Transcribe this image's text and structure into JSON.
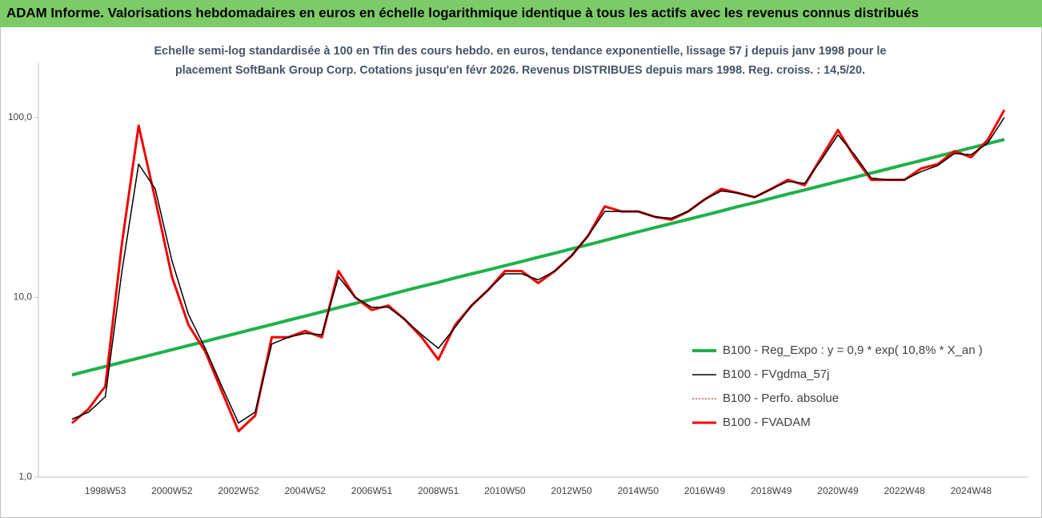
{
  "chart_data": {
    "type": "line",
    "title": "ADAM Informe. Valorisations hebdomadaires en euros en échelle logarithmique identique à tous les actifs avec les revenus connus distribués",
    "subtitle": [
      "Echelle semi-log standardisée à 100 en Tfin des cours hebdo. en euros, tendance exponentielle, lissage 57 j depuis janv 1998 pour le",
      "placement SoftBank Group Corp. Cotations jusqu'en févr 2026. Revenus DISTRIBUES depuis mars 1998. Reg. croiss. : 14,5/20."
    ],
    "categories": [
      null,
      null,
      "1998W53",
      null,
      null,
      null,
      "2000W52",
      null,
      null,
      null,
      "2002W52",
      null,
      null,
      null,
      "2004W52",
      null,
      null,
      null,
      "2006W51",
      null,
      null,
      null,
      "2008W51",
      null,
      null,
      null,
      "2010W50",
      null,
      null,
      null,
      "2012W50",
      null,
      null,
      null,
      "2014W50",
      null,
      null,
      null,
      "2016W49",
      null,
      null,
      null,
      "2018W49",
      null,
      null,
      null,
      "2020W49",
      null,
      null,
      null,
      "2022W48",
      null,
      null,
      null,
      "2024W48",
      null,
      null
    ],
    "log_scale": true,
    "ylim": [
      1,
      200
    ],
    "yticks": [
      {
        "value": 1,
        "label": "1,0"
      },
      {
        "value": 10,
        "label": "10,0"
      },
      {
        "value": 100,
        "label": "100,0"
      }
    ],
    "series": [
      {
        "name": "B100 - Reg_Expo : y = 0,9 * exp( 10,8% *  X_an )",
        "color": "#1eb14b",
        "line_width": 4,
        "values": [
          3.7,
          3.91,
          4.12,
          4.35,
          4.59,
          4.84,
          5.11,
          5.39,
          5.69,
          6.01,
          6.34,
          6.69,
          7.06,
          7.45,
          7.86,
          8.3,
          8.76,
          9.24,
          9.75,
          10.3,
          10.9,
          11.5,
          12.1,
          12.8,
          13.5,
          14.2,
          15.0,
          15.8,
          16.7,
          17.6,
          18.6,
          19.6,
          20.7,
          21.9,
          23.1,
          24.4,
          25.7,
          27.1,
          28.6,
          30.2,
          31.9,
          33.6,
          35.5,
          37.5,
          39.5,
          41.7,
          44.0,
          46.4,
          49.0,
          51.7,
          54.6,
          57.6,
          60.8,
          64.2,
          67.7,
          71.5,
          75.4
        ]
      },
      {
        "name": "B100 - FVgdma_57j",
        "color": "#000000",
        "line_width": 1.5,
        "values": [
          2.1,
          2.3,
          2.8,
          14,
          55,
          40,
          16,
          8,
          5.2,
          3.2,
          2.0,
          2.3,
          5.5,
          6,
          6.3,
          6.2,
          13,
          10,
          8.8,
          8.8,
          7.5,
          6.2,
          5.2,
          6.8,
          9,
          11,
          13.5,
          13.5,
          12.5,
          14,
          17,
          22,
          30,
          30,
          30,
          28,
          27.5,
          30,
          35,
          39,
          38,
          36,
          40,
          44,
          43,
          58,
          80,
          62,
          46,
          45,
          45,
          50,
          54,
          63,
          62,
          72,
          100
        ]
      },
      {
        "name": "B100 - Perfo. absolue",
        "color": "#c00000",
        "line_width": 1,
        "dash": true,
        "values": [
          2.0,
          2.4,
          3.2,
          20,
          90,
          35,
          13,
          7,
          5,
          3,
          1.8,
          2.2,
          6,
          6,
          6.5,
          6,
          14,
          10,
          8.5,
          9,
          7.5,
          6,
          4.5,
          7,
          9,
          11,
          14,
          14,
          12,
          14,
          17,
          22,
          32,
          30,
          30,
          28,
          27,
          30,
          35,
          40,
          38,
          36,
          40,
          45,
          42,
          60,
          85,
          60,
          45,
          45,
          45,
          52,
          55,
          65,
          60,
          75,
          110
        ]
      },
      {
        "name": "B100 - FVADAM",
        "color": "#ff0000",
        "line_width": 3,
        "values": [
          2.0,
          2.4,
          3.2,
          20,
          90,
          35,
          13,
          7,
          5,
          3,
          1.8,
          2.2,
          6,
          6,
          6.5,
          6,
          14,
          10,
          8.5,
          9,
          7.5,
          6,
          4.5,
          7,
          9,
          11,
          14,
          14,
          12,
          14,
          17,
          22,
          32,
          30,
          30,
          28,
          27,
          30,
          35,
          40,
          38,
          36,
          40,
          45,
          42,
          60,
          85,
          60,
          45,
          45,
          45,
          52,
          55,
          65,
          60,
          75,
          110
        ]
      }
    ]
  }
}
